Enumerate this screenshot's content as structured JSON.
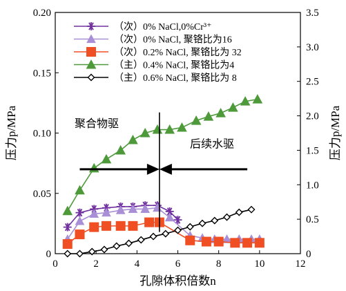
{
  "chart_data": {
    "type": "line",
    "xlabel": "孔隙体积倍数n",
    "ylabel_left": "压力p/MPa",
    "ylabel_right": "压力p/MPa",
    "xlim": [
      0,
      12
    ],
    "ylim_left": [
      0,
      0.2
    ],
    "ylim_right": [
      0,
      3.5
    ],
    "x_ticks": [
      "0",
      "2",
      "4",
      "6",
      "8",
      "10",
      "12"
    ],
    "y_left_ticks": [
      "0",
      "0.05",
      "0.10",
      "0.15",
      "0.20"
    ],
    "y_right_ticks": [
      "0",
      "0.5",
      "1.0",
      "1.5",
      "2.0",
      "2.5",
      "3.0",
      "3.5"
    ],
    "legend_position": "top-left",
    "series": [
      {
        "name": "（次）0% NaCl,0%Cr³⁺",
        "axis": "left",
        "marker": "asterisk",
        "color": "#7030a0",
        "x": [
          0.6,
          1.2,
          1.9,
          2.5,
          3.2,
          3.8,
          4.4,
          5.0,
          5.6,
          6.0
        ],
        "y": [
          0.022,
          0.034,
          0.037,
          0.038,
          0.039,
          0.039,
          0.04,
          0.04,
          0.035,
          0.028
        ]
      },
      {
        "name": "（次）0% NaCl, 聚铬比为16",
        "axis": "left",
        "marker": "triangle",
        "color": "#a98fd6",
        "x": [
          0.6,
          1.2,
          1.9,
          2.5,
          3.2,
          3.8,
          4.4,
          5.0,
          5.6,
          6.6,
          7.2,
          7.8,
          8.4,
          9.0,
          9.6,
          10.0
        ],
        "y": [
          0.012,
          0.027,
          0.033,
          0.034,
          0.036,
          0.037,
          0.037,
          0.038,
          0.03,
          0.015,
          0.013,
          0.012,
          0.012,
          0.012,
          0.012,
          0.012
        ]
      },
      {
        "name": "（次）0.2% NaCl, 聚铬比为 32",
        "axis": "left",
        "marker": "square",
        "color": "#f04e23",
        "x": [
          0.6,
          1.2,
          1.9,
          2.5,
          3.2,
          3.8,
          4.6,
          5.1,
          6.6,
          7.4,
          8.0,
          8.8,
          9.4,
          10.0
        ],
        "y": [
          0.008,
          0.016,
          0.022,
          0.023,
          0.023,
          0.023,
          0.026,
          0.026,
          0.011,
          0.01,
          0.01,
          0.009,
          0.009,
          0.009
        ]
      },
      {
        "name": "（主）0.4% NaCl, 聚铬比为4",
        "axis": "right",
        "marker": "filled-triangle",
        "color": "#4e9a3b",
        "x": [
          0.6,
          1.2,
          1.9,
          2.5,
          3.2,
          3.8,
          4.4,
          5.0,
          5.6,
          6.2,
          6.9,
          7.5,
          8.1,
          8.7,
          9.3,
          9.9
        ],
        "y": [
          0.62,
          0.92,
          1.24,
          1.37,
          1.5,
          1.65,
          1.75,
          1.8,
          1.8,
          1.83,
          1.93,
          1.99,
          2.04,
          2.12,
          2.21,
          2.24
        ]
      },
      {
        "name": "（主）0.6% NaCl, 聚铬比为 8",
        "axis": "right",
        "marker": "diamond",
        "color": "#000000",
        "x": [
          0.6,
          1.2,
          1.8,
          2.4,
          3.0,
          3.6,
          4.2,
          4.8,
          5.4,
          6.0,
          6.6,
          7.2,
          7.8,
          8.4,
          9.0,
          9.6
        ],
        "y": [
          0.0,
          0.0,
          0.03,
          0.06,
          0.11,
          0.15,
          0.2,
          0.25,
          0.29,
          0.34,
          0.39,
          0.44,
          0.48,
          0.53,
          0.6,
          0.64
        ]
      }
    ],
    "annotations": {
      "left_label": "聚合物驱",
      "right_label": "后续水驱",
      "divider_x": 5.1,
      "arrow_level_left_axis": 0.07,
      "arrow_span": [
        1.2,
        9.4
      ]
    }
  }
}
